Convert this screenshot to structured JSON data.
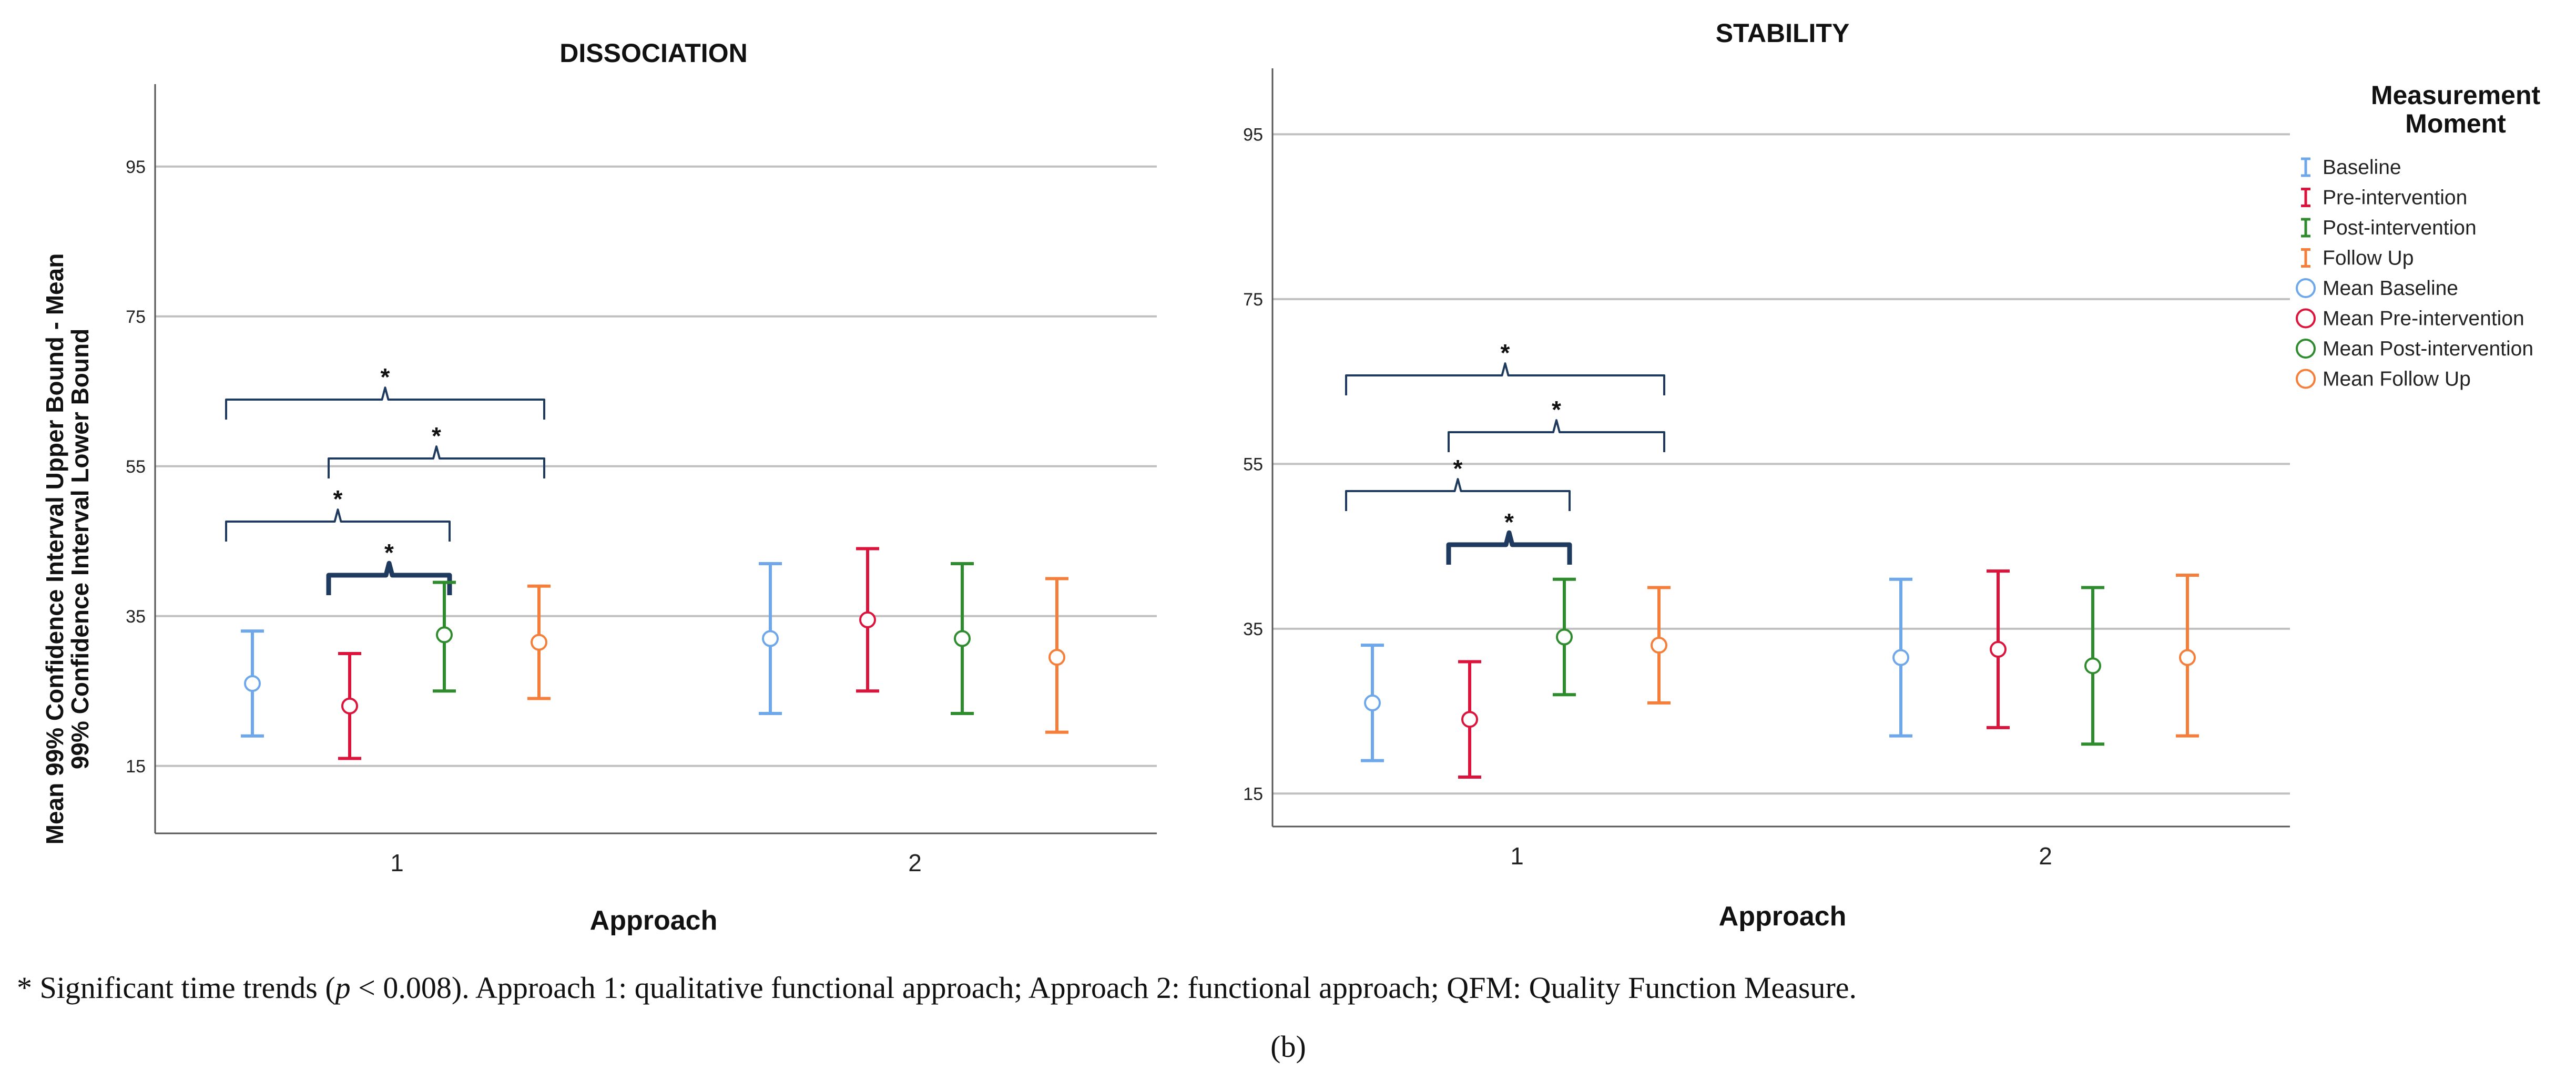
{
  "chart_data": [
    {
      "type": "errorbar",
      "title": "DISSOCIATION",
      "xlabel": "Approach",
      "ylabel": [
        "Mean 99% Confidence Interval Upper Bound - Mean",
        "99% Confidence Interval Lower Bound"
      ],
      "ylim": [
        6,
        106
      ],
      "yticks": [
        15,
        35,
        55,
        75,
        95
      ],
      "categories": [
        "1",
        "2"
      ],
      "series": [
        {
          "name": "Baseline",
          "color": "#6fa8ea",
          "means": [
            26,
            32
          ],
          "lower": [
            19,
            22
          ],
          "upper": [
            33,
            42
          ]
        },
        {
          "name": "Pre-intervention",
          "color": "#dc143c",
          "means": [
            23,
            34.5
          ],
          "lower": [
            16,
            25
          ],
          "upper": [
            30,
            44
          ]
        },
        {
          "name": "Post-intervention",
          "color": "#2e8b2e",
          "means": [
            32.5,
            32
          ],
          "lower": [
            25,
            22
          ],
          "upper": [
            39.5,
            42
          ]
        },
        {
          "name": "Follow Up",
          "color": "#f57f3a",
          "means": [
            31.5,
            29.5
          ],
          "lower": [
            24,
            19.5
          ],
          "upper": [
            39,
            40
          ]
        }
      ],
      "annotations": [
        {
          "label": "*",
          "from_series": 0,
          "to_series": 3,
          "category": "1",
          "bold": false
        },
        {
          "label": "*",
          "from_series": 1,
          "to_series": 3,
          "category": "1",
          "bold": false
        },
        {
          "label": "*",
          "from_series": 0,
          "to_series": 2,
          "category": "1",
          "bold": false
        },
        {
          "label": "*",
          "from_series": 1,
          "to_series": 2,
          "category": "1",
          "bold": true
        }
      ]
    },
    {
      "type": "errorbar",
      "title": "STABILITY",
      "xlabel": "Approach",
      "ylim": [
        11,
        103
      ],
      "yticks": [
        15,
        35,
        55,
        75,
        95
      ],
      "categories": [
        "1",
        "2"
      ],
      "series": [
        {
          "name": "Baseline",
          "color": "#6fa8ea",
          "means": [
            26,
            31.5
          ],
          "lower": [
            19,
            22
          ],
          "upper": [
            33,
            41
          ]
        },
        {
          "name": "Pre-intervention",
          "color": "#dc143c",
          "means": [
            24,
            32.5
          ],
          "lower": [
            17,
            23
          ],
          "upper": [
            31,
            42
          ]
        },
        {
          "name": "Post-intervention",
          "color": "#2e8b2e",
          "means": [
            34,
            30.5
          ],
          "lower": [
            27,
            21
          ],
          "upper": [
            41,
            40
          ]
        },
        {
          "name": "Follow Up",
          "color": "#f57f3a",
          "means": [
            33,
            31.5
          ],
          "lower": [
            26,
            22
          ],
          "upper": [
            40,
            41.5
          ]
        }
      ],
      "annotations": [
        {
          "label": "*",
          "from_series": 0,
          "to_series": 3,
          "category": "1",
          "bold": false
        },
        {
          "label": "*",
          "from_series": 1,
          "to_series": 3,
          "category": "1",
          "bold": false
        },
        {
          "label": "*",
          "from_series": 0,
          "to_series": 2,
          "category": "1",
          "bold": false
        },
        {
          "label": "*",
          "from_series": 1,
          "to_series": 2,
          "category": "1",
          "bold": true
        }
      ]
    }
  ],
  "legend": {
    "title": [
      "Measurement",
      "Moment"
    ],
    "items": [
      {
        "label": "Baseline",
        "marker": "errorbar",
        "color": "#6fa8ea"
      },
      {
        "label": "Pre-intervention",
        "marker": "errorbar",
        "color": "#dc143c"
      },
      {
        "label": "Post-intervention",
        "marker": "errorbar",
        "color": "#2e8b2e"
      },
      {
        "label": "Follow Up",
        "marker": "errorbar",
        "color": "#f57f3a"
      },
      {
        "label": "Mean Baseline",
        "marker": "circle",
        "color": "#6fa8ea"
      },
      {
        "label": "Mean Pre-intervention",
        "marker": "circle",
        "color": "#dc143c"
      },
      {
        "label": "Mean Post-intervention",
        "marker": "circle",
        "color": "#2e8b2e"
      },
      {
        "label": "Mean Follow Up",
        "marker": "circle",
        "color": "#f57f3a"
      }
    ]
  },
  "caption": {
    "pre": "* Significant time trends (",
    "p": "p",
    "post": " < 0.008). Approach 1: qualitative functional approach; Approach 2: functional approach; QFM: Quality Function Measure."
  },
  "panel_label": "(b)",
  "colors": {
    "gridline": "#c0c0c0",
    "bracket": "#1f3a5f",
    "axis": "#555555"
  }
}
